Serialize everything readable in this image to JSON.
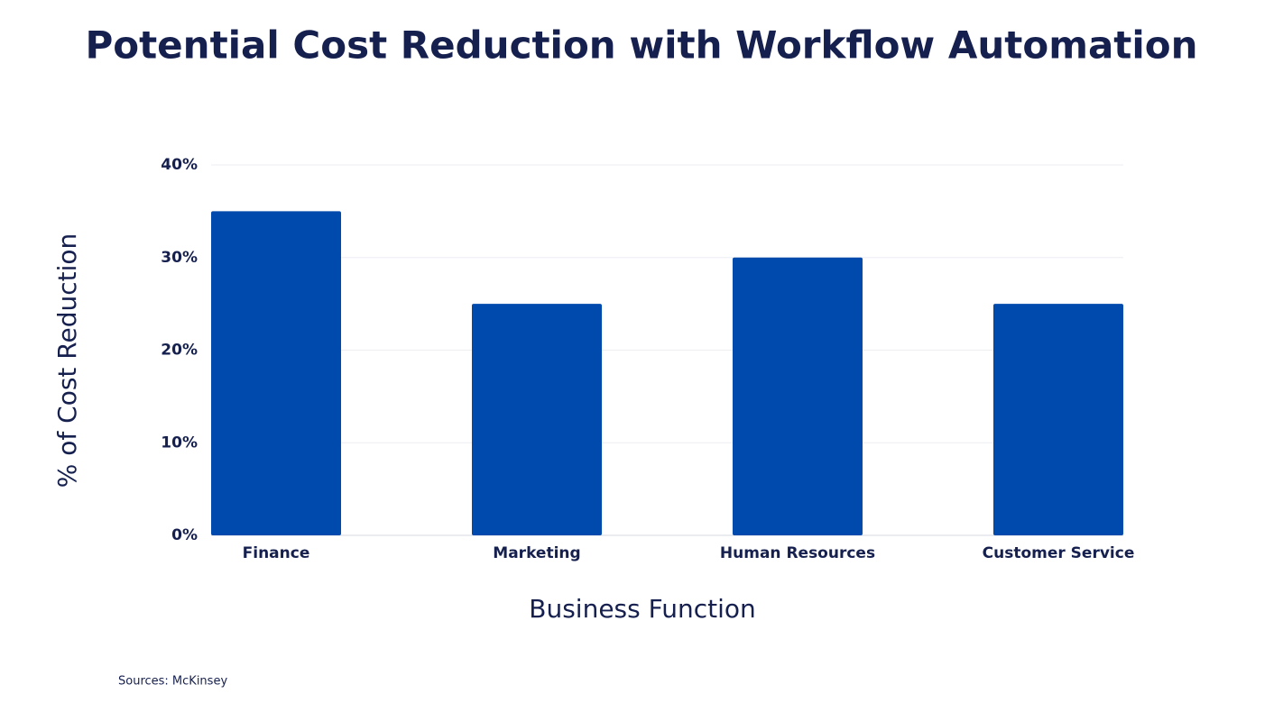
{
  "chart_data": {
    "type": "bar",
    "title": "Potential Cost Reduction with Workflow Automation",
    "x_label": "Business Function",
    "y_label": "% of Cost Reduction",
    "categories": [
      "Finance",
      "Marketing",
      "Human Resources",
      "Customer Service"
    ],
    "values": [
      35,
      25,
      30,
      25
    ],
    "color": "#004aad",
    "ylim": [
      0,
      40
    ],
    "yticks": [
      {
        "value": 0,
        "label": "0%"
      },
      {
        "value": 10,
        "label": "10%"
      },
      {
        "value": 20,
        "label": "20%"
      },
      {
        "value": 30,
        "label": "30%"
      },
      {
        "value": 40,
        "label": "40%"
      }
    ],
    "grid": true,
    "source": "Sources:  McKinsey"
  }
}
